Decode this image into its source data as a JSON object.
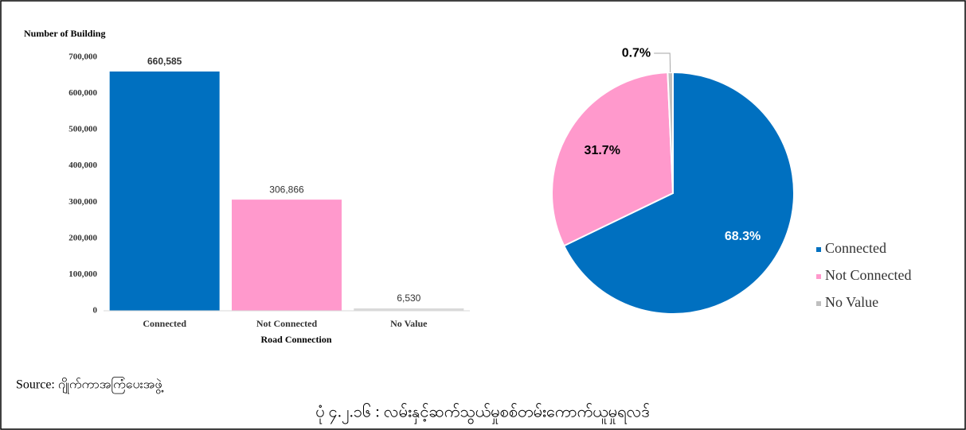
{
  "chart_data": [
    {
      "type": "bar",
      "ylabel": "Number of Building",
      "xlabel": "Road Connection",
      "categories": [
        "Connected",
        "Not Connected",
        "No Value"
      ],
      "values": [
        660585,
        306866,
        6530
      ],
      "value_labels": [
        "660,585",
        "306,866",
        "6,530"
      ],
      "colors": [
        "#0070c0",
        "#ff99cc",
        "#d9d9d9"
      ],
      "ylim": [
        0,
        700000
      ],
      "yticks": [
        0,
        {
          "value": 100000,
          "label": "100,000"
        },
        {
          "value": 200000,
          "label": "200,000"
        },
        {
          "value": 300000,
          "label": "300,000"
        },
        {
          "value": 400000,
          "label": "400,000"
        },
        {
          "value": 500000,
          "label": "500,000"
        },
        {
          "value": 600000,
          "label": "600,000"
        },
        {
          "value": 700000,
          "label": "700,000"
        }
      ],
      "grid": false
    },
    {
      "type": "pie",
      "categories": [
        "Connected",
        "Not Connected",
        "No Value"
      ],
      "values": [
        68.3,
        31.7,
        0.7
      ],
      "value_labels": [
        "68.3%",
        "31.7%",
        "0.7%"
      ],
      "colors": [
        "#0070c0",
        "#ff99cc",
        "#bfbfbf"
      ],
      "label_colors": [
        "#ffffff",
        "#000000",
        "#000000"
      ],
      "legend": "right"
    }
  ],
  "source": "Source: ဂျိုက်ကာအကြံပေးအဖွဲ့",
  "caption": "ပုံ ၄.၂.၁၆ : လမ်းနှင့်ဆက်သွယ်မှုစစ်တမ်းကောက်ယူမှုရလဒ်"
}
